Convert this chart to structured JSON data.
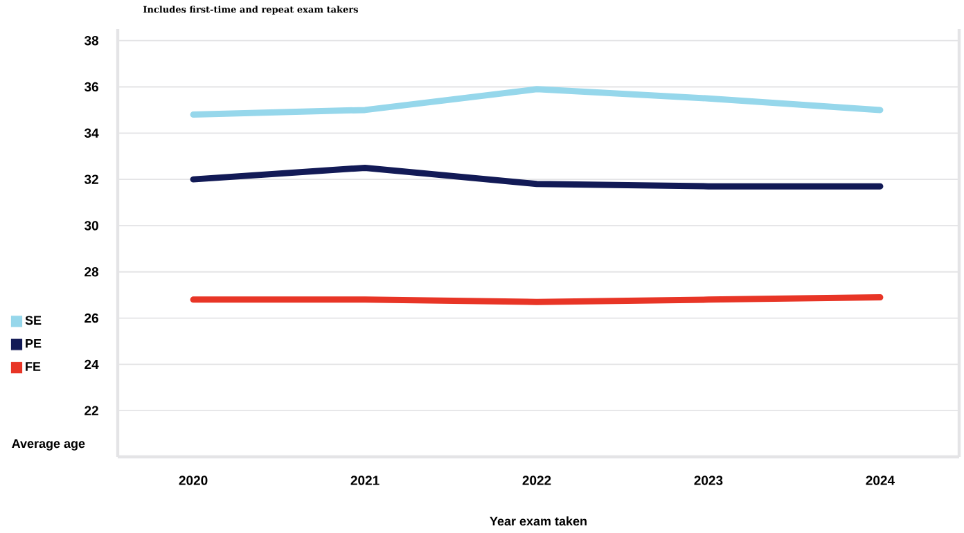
{
  "chart_data": {
    "type": "line",
    "subtitle": "Includes first-time and repeat exam takers",
    "xlabel": "Year exam taken",
    "ylabel": "Average age",
    "categories": [
      "2020",
      "2021",
      "2022",
      "2023",
      "2024"
    ],
    "series": [
      {
        "name": "SE",
        "color": "#96d7eb",
        "values": [
          34.8,
          35.0,
          35.9,
          35.5,
          35.0
        ]
      },
      {
        "name": "PE",
        "color": "#121a56",
        "values": [
          32.0,
          32.5,
          31.8,
          31.7,
          31.7
        ]
      },
      {
        "name": "FE",
        "color": "#e83526",
        "values": [
          26.8,
          26.8,
          26.7,
          26.8,
          26.9
        ]
      }
    ],
    "ylim": [
      20,
      38.5
    ],
    "yticks": [
      22,
      24,
      26,
      28,
      30,
      32,
      34,
      36,
      38
    ],
    "grid": "y",
    "legend": "left",
    "marker": "none",
    "line_style": "solid"
  }
}
